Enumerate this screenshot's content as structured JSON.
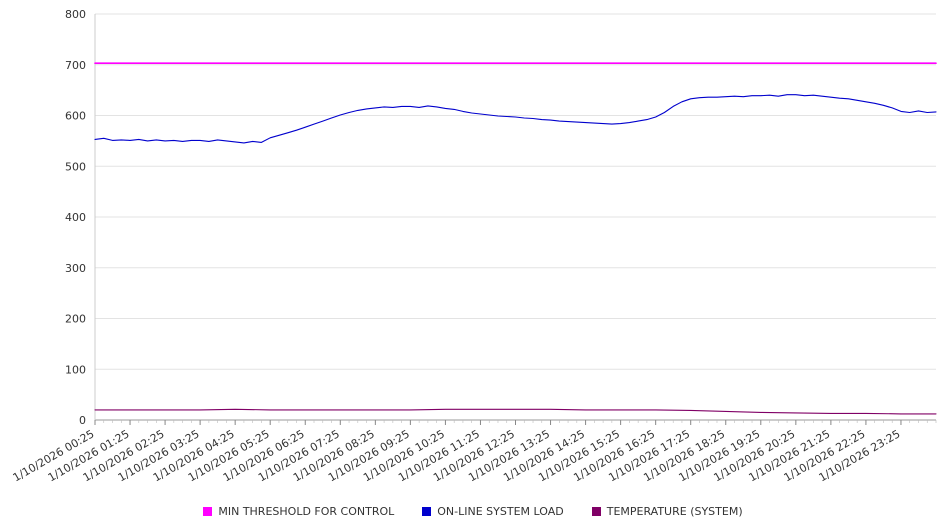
{
  "chart_data": {
    "type": "line",
    "title": "",
    "xlabel": "",
    "ylabel": "",
    "xlim": [
      0,
      24
    ],
    "ylim": [
      0,
      800
    ],
    "grid": "horizontal",
    "legend_position": "bottom-center",
    "y_ticks": [
      0,
      100,
      200,
      300,
      400,
      500,
      600,
      700,
      800
    ],
    "x_tick_labels": [
      "1/10/2026 00:25",
      "1/10/2026 01:25",
      "1/10/2026 02:25",
      "1/10/2026 03:25",
      "1/10/2026 04:25",
      "1/10/2026 05:25",
      "1/10/2026 06:25",
      "1/10/2026 07:25",
      "1/10/2026 08:25",
      "1/10/2026 09:25",
      "1/10/2026 10:25",
      "1/10/2026 11:25",
      "1/10/2026 12:25",
      "1/10/2026 13:25",
      "1/10/2026 14:25",
      "1/10/2026 15:25",
      "1/10/2026 16:25",
      "1/10/2026 17:25",
      "1/10/2026 18:25",
      "1/10/2026 19:25",
      "1/10/2026 20:25",
      "1/10/2026 21:25",
      "1/10/2026 22:25",
      "1/10/2026 23:25"
    ],
    "series": [
      {
        "name": "MIN THRESHOLD FOR CONTROL",
        "color": "#ff00ff",
        "width": 1.6,
        "x": [
          0,
          24
        ],
        "values": [
          703,
          703
        ]
      },
      {
        "name": "ON-LINE SYSTEM LOAD",
        "color": "#0000cd",
        "width": 1.1,
        "x_start": 0,
        "x_step": 0.25,
        "values": [
          553,
          555,
          551,
          552,
          551,
          553,
          550,
          552,
          550,
          551,
          549,
          551,
          551,
          549,
          552,
          550,
          548,
          546,
          549,
          547,
          556,
          561,
          566,
          571,
          577,
          583,
          589,
          595,
          601,
          606,
          610,
          613,
          615,
          617,
          616,
          618,
          618,
          616,
          619,
          617,
          614,
          612,
          608,
          605,
          603,
          601,
          599,
          598,
          597,
          595,
          594,
          592,
          591,
          589,
          588,
          587,
          586,
          585,
          584,
          583,
          584,
          586,
          589,
          592,
          597,
          606,
          618,
          627,
          633,
          635,
          636,
          636,
          637,
          638,
          637,
          639,
          639,
          640,
          638,
          641,
          641,
          639,
          640,
          638,
          636,
          634,
          633,
          630,
          627,
          624,
          620,
          615,
          608,
          606,
          609,
          606,
          607
        ]
      },
      {
        "name": "TEMPERATURE (SYSTEM)",
        "color": "#800066",
        "width": 1.1,
        "x_start": 0,
        "x_step": 1,
        "values": [
          20,
          20,
          20,
          20,
          21,
          20,
          20,
          20,
          20,
          20,
          21,
          21,
          21,
          21,
          20,
          20,
          20,
          19,
          17,
          15,
          14,
          13,
          13,
          12,
          12
        ]
      }
    ]
  }
}
